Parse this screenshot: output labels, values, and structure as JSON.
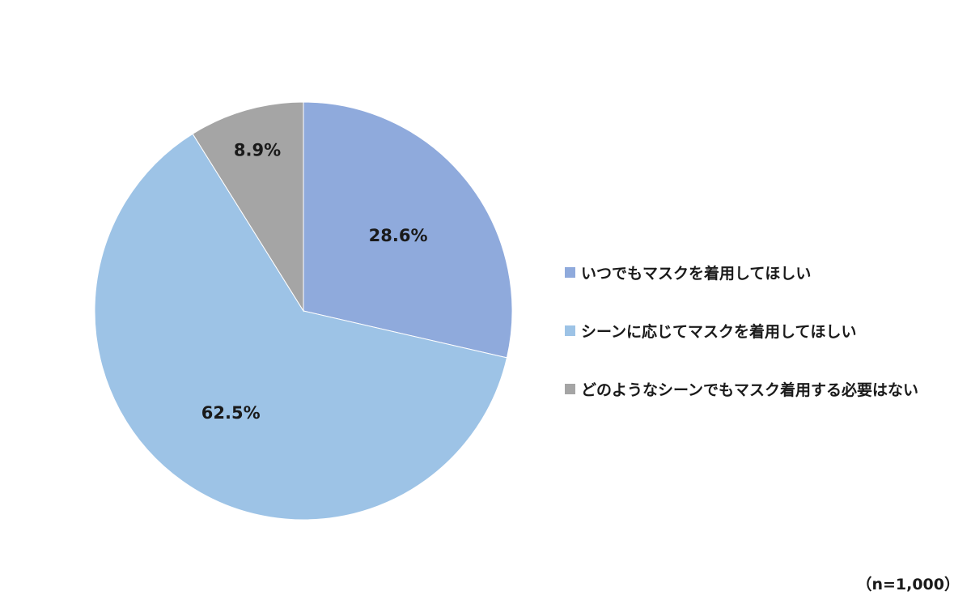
{
  "chart_data": {
    "type": "pie",
    "title": "",
    "start_angle_deg": 0,
    "direction": "clockwise",
    "slices": [
      {
        "label": "いつでもマスクを着用してほしい",
        "value": 28.6,
        "value_label": "28.6%",
        "color": "#8FAADC"
      },
      {
        "label": "シーンに応じてマスクを着用してほしい",
        "value": 62.5,
        "value_label": "62.5%",
        "color": "#9DC3E6"
      },
      {
        "label": "どのようなシーンでもマスク着用する必要はない",
        "value": 8.9,
        "value_label": "8.9%",
        "color": "#A5A5A5"
      }
    ],
    "legend_position": "right",
    "sample_note": "（n=1,000）"
  }
}
